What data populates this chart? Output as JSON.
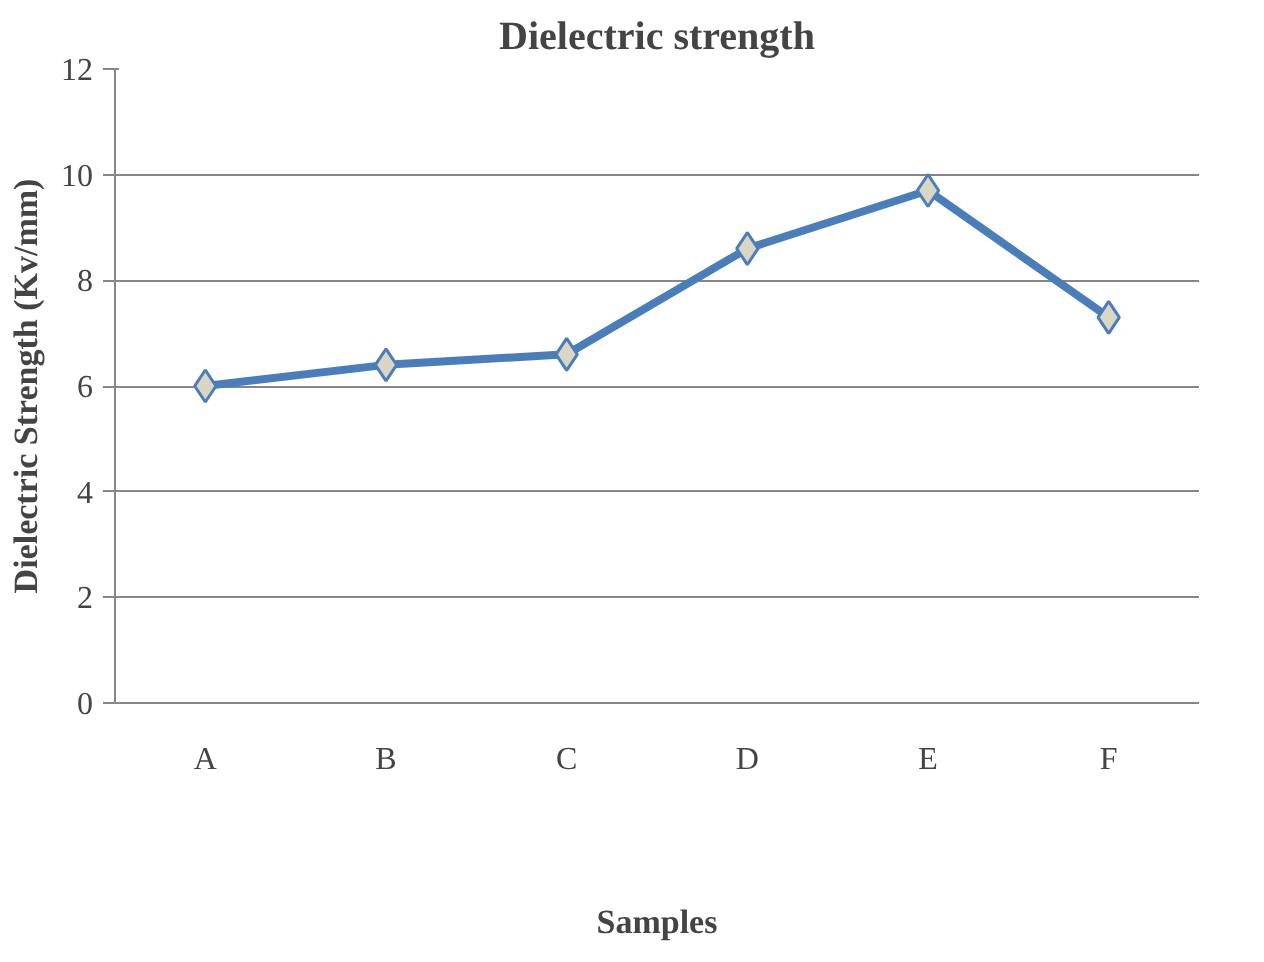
{
  "chart_data": {
    "type": "line",
    "title": "Dielectric strength",
    "xlabel": "Samples",
    "ylabel": "Dielectric Strength (Kv/mm)",
    "categories": [
      "A",
      "B",
      "C",
      "D",
      "E",
      "F"
    ],
    "series": [
      {
        "color": "#4a7ebb",
        "values": [
          6.0,
          6.4,
          6.6,
          8.6,
          9.7,
          7.3
        ]
      }
    ],
    "ylim": [
      0,
      12
    ],
    "yticks": [
      0,
      2,
      4,
      6,
      8,
      10,
      12
    ],
    "grid": "y",
    "marker": "diamond",
    "line_style": "solid"
  }
}
